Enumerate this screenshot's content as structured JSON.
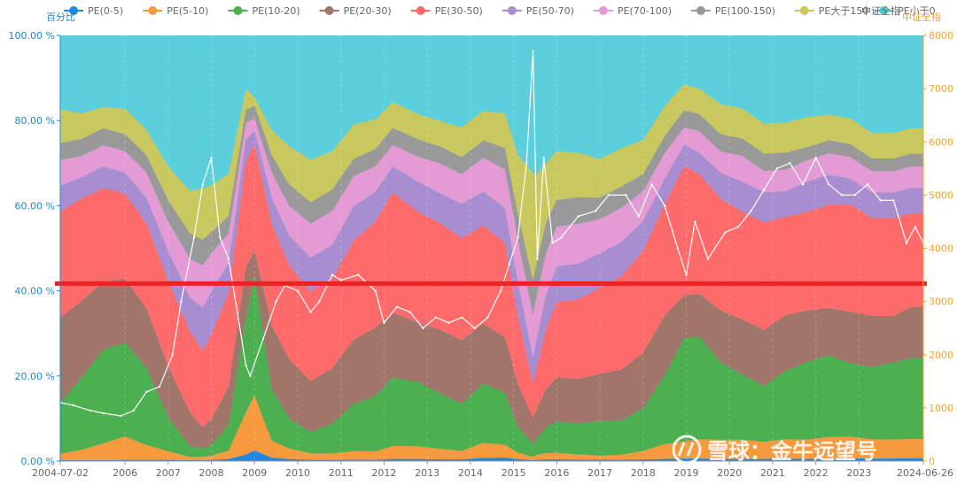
{
  "chart_data": {
    "type": "area",
    "stacked_percent": true,
    "left_axis": {
      "title": "百分比",
      "min": 0,
      "max": 100,
      "ticks": [
        "0.00 %",
        "20.00 %",
        "40.00 %",
        "60.00 %",
        "80.00 %",
        "100.00 %"
      ]
    },
    "right_axis": {
      "title": "中证全指",
      "min": 0,
      "max": 8000,
      "ticks": [
        "0",
        "1000",
        "2000",
        "3000",
        "4000",
        "5000",
        "6000",
        "7000",
        "8000"
      ]
    },
    "x_ticks": [
      "2004-07-02",
      "2006",
      "2007",
      "2008",
      "2009",
      "2010",
      "2011",
      "2012",
      "2013",
      "2014",
      "2015",
      "2016",
      "2017",
      "2018",
      "2019",
      "2020",
      "2021",
      "2022",
      "2023",
      "2024-06-26"
    ],
    "x_years": [
      2004.5,
      2006,
      2007,
      2008,
      2009,
      2010,
      2011,
      2012,
      2013,
      2014,
      2015,
      2016,
      2017,
      2018,
      2019,
      2020,
      2021,
      2022,
      2023,
      2024.49
    ],
    "x": [
      2004.5,
      2005.0,
      2005.5,
      2006.0,
      2006.5,
      2007.0,
      2007.5,
      2007.8,
      2008.0,
      2008.4,
      2008.8,
      2009.0,
      2009.4,
      2009.8,
      2010.3,
      2010.8,
      2011.3,
      2011.8,
      2012.2,
      2012.8,
      2013.3,
      2013.8,
      2014.3,
      2014.8,
      2015.1,
      2015.45,
      2015.55,
      2015.75,
      2016.0,
      2016.5,
      2017.0,
      2017.5,
      2018.0,
      2018.5,
      2018.95,
      2019.3,
      2019.8,
      2020.3,
      2020.8,
      2021.3,
      2021.8,
      2022.3,
      2022.8,
      2023.3,
      2023.8,
      2024.2,
      2024.49
    ],
    "series": [
      {
        "name": "PE(0-5)",
        "color": "#1e88e5",
        "values": [
          0.2,
          0.2,
          0.2,
          0.3,
          0.3,
          0.3,
          0.2,
          0.2,
          0.3,
          0.5,
          1.5,
          2.5,
          0.8,
          0.5,
          0.3,
          0.3,
          0.3,
          0.3,
          0.5,
          0.5,
          0.4,
          0.4,
          0.8,
          0.8,
          0.5,
          0.2,
          0.3,
          0.4,
          0.4,
          0.3,
          0.3,
          0.3,
          0.4,
          0.5,
          0.6,
          0.6,
          0.5,
          0.5,
          0.5,
          0.6,
          0.5,
          0.6,
          0.7,
          0.6,
          0.6,
          0.7,
          0.7
        ]
      },
      {
        "name": "PE(5-10)",
        "color": "#f79a3e",
        "values": [
          1.5,
          2.5,
          4.0,
          5.5,
          3.5,
          2.0,
          0.8,
          0.8,
          1.0,
          2.0,
          10.0,
          13.0,
          4.0,
          2.5,
          1.5,
          1.5,
          2.0,
          2.0,
          3.0,
          3.0,
          2.5,
          2.0,
          3.5,
          3.0,
          1.5,
          0.8,
          1.2,
          1.5,
          1.5,
          1.2,
          1.0,
          1.2,
          2.0,
          3.5,
          4.0,
          4.5,
          4.5,
          4.5,
          4.0,
          4.5,
          4.5,
          5.0,
          5.0,
          4.5,
          4.5,
          4.5,
          4.5
        ]
      },
      {
        "name": "PE(10-20)",
        "color": "#4caf50",
        "values": [
          12.0,
          17.0,
          22.0,
          22.0,
          18.0,
          8.0,
          2.5,
          2.0,
          2.5,
          6.0,
          22.0,
          28.0,
          12.0,
          7.0,
          5.0,
          7.0,
          11.0,
          13.0,
          16.0,
          15.0,
          13.0,
          11.0,
          14.0,
          12.0,
          6.0,
          3.0,
          4.0,
          6.0,
          7.0,
          7.0,
          8.0,
          8.0,
          10.0,
          16.0,
          24.0,
          24.0,
          18.0,
          15.0,
          13.0,
          16.0,
          18.0,
          19.0,
          17.0,
          17.0,
          18.0,
          19.0,
          19.0
        ]
      },
      {
        "name": "PE(20-30)",
        "color": "#a0756a",
        "values": [
          20.0,
          18.0,
          16.0,
          15.0,
          14.0,
          12.0,
          8.0,
          5.0,
          6.0,
          9.0,
          12.0,
          6.0,
          15.0,
          14.0,
          12.0,
          13.0,
          15.0,
          16.0,
          15.0,
          14.0,
          15.0,
          15.0,
          14.0,
          13.0,
          10.0,
          6.0,
          7.0,
          9.0,
          10.0,
          10.0,
          11.0,
          12.0,
          13.0,
          14.0,
          10.0,
          10.0,
          12.0,
          13.0,
          13.0,
          13.0,
          12.0,
          11.0,
          12.0,
          12.0,
          11.0,
          12.0,
          12.0
        ]
      },
      {
        "name": "PE(30-50)",
        "color": "#ff6b6b",
        "values": [
          25.0,
          24.0,
          22.0,
          20.0,
          20.0,
          20.0,
          19.0,
          18.0,
          20.0,
          22.0,
          25.0,
          25.0,
          24.0,
          22.0,
          21.0,
          21.0,
          23.0,
          25.0,
          28.0,
          26.0,
          25.0,
          24.0,
          23.0,
          22.0,
          16.0,
          8.0,
          10.0,
          14.0,
          17.0,
          18.0,
          20.0,
          22.0,
          24.0,
          26.0,
          30.0,
          28.0,
          26.0,
          25.0,
          25.0,
          23.0,
          23.0,
          24.0,
          25.0,
          23.0,
          23.0,
          22.0,
          22.0
        ]
      },
      {
        "name": "PE(50-70)",
        "color": "#a98dd1",
        "values": [
          6.0,
          5.0,
          5.0,
          5.0,
          6.0,
          7.0,
          8.0,
          10.0,
          10.0,
          7.0,
          5.0,
          3.0,
          6.0,
          7.0,
          8.0,
          8.0,
          8.0,
          7.0,
          6.0,
          7.0,
          7.0,
          8.0,
          8.0,
          8.0,
          8.0,
          6.0,
          7.0,
          8.0,
          8.0,
          8.0,
          8.0,
          8.0,
          7.0,
          6.0,
          5.0,
          5.0,
          6.0,
          7.0,
          7.0,
          6.0,
          7.0,
          7.0,
          6.0,
          6.0,
          6.0,
          6.0,
          6.0
        ]
      },
      {
        "name": "PE(70-100)",
        "color": "#e49ad3",
        "values": [
          6.0,
          5.0,
          5.0,
          5.0,
          6.0,
          7.0,
          9.0,
          10.0,
          9.0,
          7.0,
          4.0,
          3.0,
          6.0,
          7.0,
          8.0,
          8.0,
          7.0,
          6.0,
          5.0,
          6.0,
          7.0,
          7.0,
          8.0,
          9.0,
          10.0,
          10.0,
          10.0,
          10.0,
          9.0,
          9.0,
          8.0,
          8.0,
          7.0,
          6.0,
          4.0,
          5.0,
          5.0,
          6.0,
          5.0,
          5.0,
          5.0,
          5.0,
          5.0,
          5.0,
          5.0,
          5.0,
          5.0
        ]
      },
      {
        "name": "PE(100-150)",
        "color": "#999999",
        "values": [
          4.0,
          4.0,
          4.0,
          4.0,
          4.0,
          5.0,
          6.0,
          6.0,
          5.0,
          4.0,
          3.0,
          3.0,
          4.0,
          5.0,
          5.0,
          5.0,
          4.0,
          4.0,
          4.0,
          4.0,
          4.0,
          4.0,
          4.0,
          5.0,
          6.0,
          8.0,
          8.0,
          7.0,
          6.0,
          6.0,
          5.0,
          5.0,
          4.0,
          4.0,
          4.0,
          4.0,
          4.0,
          4.0,
          4.0,
          4.0,
          3.0,
          3.0,
          3.0,
          3.0,
          3.0,
          3.0,
          3.0
        ]
      },
      {
        "name": "PE大于150",
        "color": "#c9c85e",
        "values": [
          8.0,
          6.0,
          5.0,
          6.0,
          6.0,
          8.0,
          10.0,
          12.0,
          11.0,
          10.0,
          5.0,
          2.0,
          6.0,
          9.0,
          10.0,
          9.0,
          8.0,
          7.0,
          6.0,
          6.0,
          6.0,
          7.0,
          7.0,
          8.0,
          14.0,
          25.0,
          20.0,
          14.0,
          11.0,
          10.0,
          9.0,
          9.0,
          8.0,
          7.0,
          6.0,
          6.0,
          7.0,
          7.0,
          7.0,
          7.0,
          7.0,
          6.0,
          6.0,
          6.0,
          6.0,
          6.0,
          6.0
        ]
      },
      {
        "name": "PE小于0",
        "color": "#5bcfdc",
        "values": [
          17.3,
          18.3,
          16.8,
          17.2,
          22.2,
          30.7,
          36.5,
          36.0,
          35.2,
          32.5,
          12.5,
          14.5,
          22.2,
          26.0,
          29.2,
          27.2,
          20.7,
          19.7,
          15.5,
          18.5,
          20.1,
          21.6,
          17.7,
          18.2,
          28.0,
          32.0,
          32.5,
          30.1,
          26.1,
          26.5,
          28.7,
          26.5,
          24.6,
          16.5,
          11.4,
          12.4,
          16.0,
          17.0,
          20.5,
          20.4,
          19.0,
          18.4,
          19.3,
          22.9,
          22.9,
          21.8,
          21.8
        ]
      }
    ],
    "index_line": {
      "name": "中证全指",
      "color": "#ffffff",
      "x": [
        2004.5,
        2004.8,
        2005.2,
        2005.5,
        2005.9,
        2006.2,
        2006.5,
        2006.8,
        2007.1,
        2007.3,
        2007.6,
        2007.8,
        2008.0,
        2008.2,
        2008.4,
        2008.6,
        2008.8,
        2008.9,
        2009.2,
        2009.5,
        2009.7,
        2010.0,
        2010.3,
        2010.5,
        2010.8,
        2011.0,
        2011.4,
        2011.8,
        2012.0,
        2012.3,
        2012.6,
        2012.9,
        2013.2,
        2013.5,
        2013.8,
        2014.1,
        2014.4,
        2014.7,
        2014.9,
        2015.1,
        2015.3,
        2015.45,
        2015.55,
        2015.7,
        2015.9,
        2016.1,
        2016.5,
        2016.9,
        2017.2,
        2017.6,
        2017.9,
        2018.2,
        2018.5,
        2018.8,
        2019.0,
        2019.2,
        2019.5,
        2019.9,
        2020.2,
        2020.5,
        2020.8,
        2021.1,
        2021.4,
        2021.7,
        2022.0,
        2022.3,
        2022.6,
        2022.9,
        2023.2,
        2023.5,
        2023.8,
        2024.1,
        2024.3,
        2024.49
      ],
      "values": [
        1100,
        1050,
        950,
        900,
        850,
        950,
        1300,
        1400,
        2000,
        3000,
        4200,
        5200,
        5700,
        4200,
        3800,
        2800,
        1800,
        1600,
        2300,
        3000,
        3300,
        3200,
        2800,
        3000,
        3500,
        3400,
        3500,
        3200,
        2600,
        2900,
        2800,
        2500,
        2700,
        2600,
        2700,
        2500,
        2700,
        3200,
        3700,
        4200,
        5600,
        7700,
        3800,
        5700,
        4100,
        4200,
        4600,
        4700,
        5000,
        5000,
        4600,
        5200,
        4800,
        4000,
        3500,
        4500,
        3800,
        4300,
        4400,
        4700,
        5100,
        5500,
        5600,
        5200,
        5700,
        5200,
        5000,
        5000,
        5200,
        4900,
        4900,
        4100,
        4400,
        4100
      ]
    },
    "reference_line": {
      "value_percent": 41.7,
      "color": "#ee2222"
    }
  },
  "watermark": {
    "text": "雪球：金牛远望号"
  }
}
